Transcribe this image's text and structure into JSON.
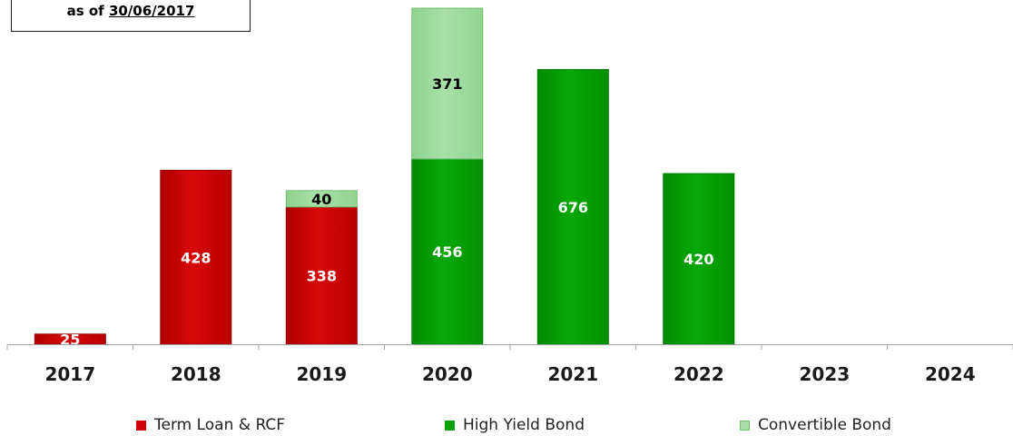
{
  "note": {
    "prefix": "as of",
    "date": "30/06/2017"
  },
  "colors": {
    "term_loan": "#d00404",
    "high_yield": "#05a105",
    "convertible": "#9fdc9f",
    "axis": "#a6a6a6"
  },
  "chart_data": {
    "type": "bar",
    "stacked": true,
    "categories": [
      "2017",
      "2018",
      "2019",
      "2020",
      "2021",
      "2022",
      "2023",
      "2024"
    ],
    "series": [
      {
        "name": "Term Loan & RCF",
        "values": [
          25,
          428,
          338,
          0,
          0,
          0,
          0,
          0
        ],
        "labels": [
          "25",
          "428",
          "338",
          "",
          "",
          "",
          "",
          ""
        ]
      },
      {
        "name": "High Yield Bond",
        "values": [
          0,
          0,
          0,
          456,
          676,
          420,
          0,
          0
        ],
        "labels": [
          "",
          "",
          "",
          "456",
          "676",
          "420",
          "",
          ""
        ]
      },
      {
        "name": "Convertible Bond",
        "values": [
          0,
          0,
          40,
          371,
          0,
          0,
          0,
          0
        ],
        "labels": [
          "",
          "",
          "40",
          "371",
          "",
          "",
          "",
          ""
        ]
      }
    ],
    "ylim": [
      0,
      850
    ],
    "grid": false,
    "legend": "bottom"
  }
}
